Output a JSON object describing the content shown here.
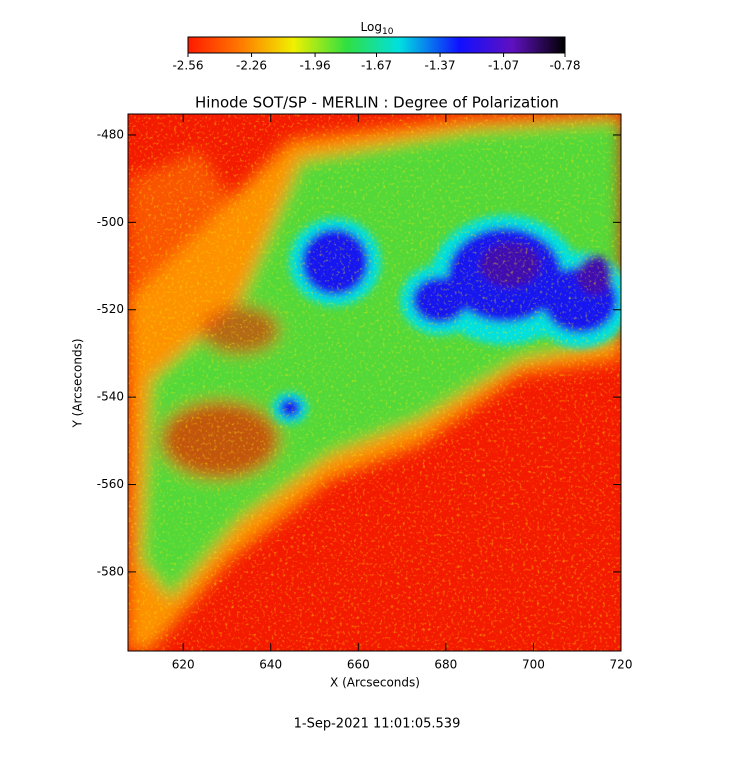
{
  "chart_data": {
    "type": "heatmap",
    "title": "Hinode SOT/SP - MERLIN : Degree of Polarization",
    "xlabel": "X (Arcseconds)",
    "ylabel": "Y (Arcseconds)",
    "xlim": [
      607.4,
      720
    ],
    "ylim": [
      -598.1,
      -475.2
    ],
    "xticks": [
      620,
      640,
      660,
      680,
      700,
      720
    ],
    "yticks": [
      -480,
      -500,
      -520,
      -540,
      -560,
      -580
    ],
    "colorbar": {
      "label": "Log",
      "label_subscript": "10",
      "lim": [
        -2.56,
        -0.78
      ],
      "ticks": [
        -2.56,
        -2.26,
        -1.96,
        -1.67,
        -1.37,
        -1.07,
        -0.78
      ]
    },
    "footer": "1-Sep-2021 11:01:05.539"
  }
}
